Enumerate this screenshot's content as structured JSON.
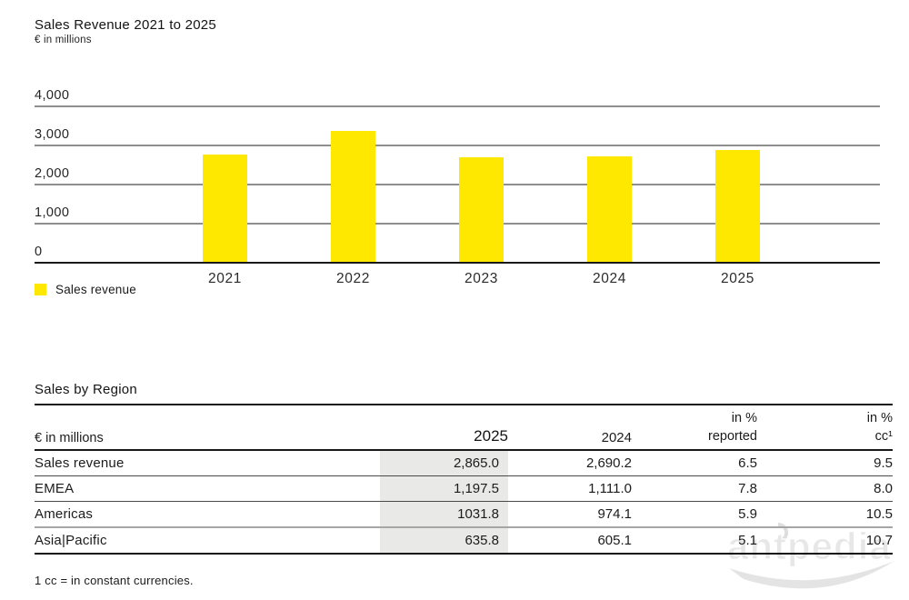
{
  "chart_data": {
    "type": "bar",
    "title": "Sales Revenue 2021 to 2025",
    "subtitle": "€ in millions",
    "categories": [
      "2021",
      "2022",
      "2023",
      "2024",
      "2025"
    ],
    "series": [
      {
        "name": "Sales revenue",
        "color": "#FFE800",
        "values": [
          2750,
          3360,
          2670,
          2690.2,
          2865.0
        ]
      }
    ],
    "ylim": [
      0,
      4000
    ],
    "yticks": [
      {
        "label": "4,000",
        "value": 4000
      },
      {
        "label": "3,000",
        "value": 3000
      },
      {
        "label": "2,000",
        "value": 2000
      },
      {
        "label": "1,000",
        "value": 1000
      },
      {
        "label": "0",
        "value": 0
      }
    ],
    "grid": true,
    "legend_position": "bottom-left",
    "legend_label": "Sales revenue"
  },
  "table": {
    "title": "Sales by Region",
    "unit_label": "€ in millions",
    "columns": {
      "c2025": "2025",
      "c2024": "2024",
      "reported_line1": "in %",
      "reported_line2": "reported",
      "cc_line1": "in %",
      "cc_line2": "cc¹"
    },
    "rows": [
      {
        "label": "Sales revenue",
        "y2025": "2,865.0",
        "y2024": "2,690.2",
        "pct_reported": "6.5",
        "pct_cc": "9.5"
      },
      {
        "label": "EMEA",
        "y2025": "1,197.5",
        "y2024": "1,111.0",
        "pct_reported": "7.8",
        "pct_cc": "8.0"
      },
      {
        "label": "Americas",
        "y2025": "1031.8",
        "y2024": "974.1",
        "pct_reported": "5.9",
        "pct_cc": "10.5"
      },
      {
        "label": "Asia|Pacific",
        "y2025": "635.8",
        "y2024": "605.1",
        "pct_reported": "5.1",
        "pct_cc": "10.7"
      }
    ],
    "footnote": "1 cc = in constant currencies."
  },
  "watermark": {
    "text": "antpedia"
  }
}
